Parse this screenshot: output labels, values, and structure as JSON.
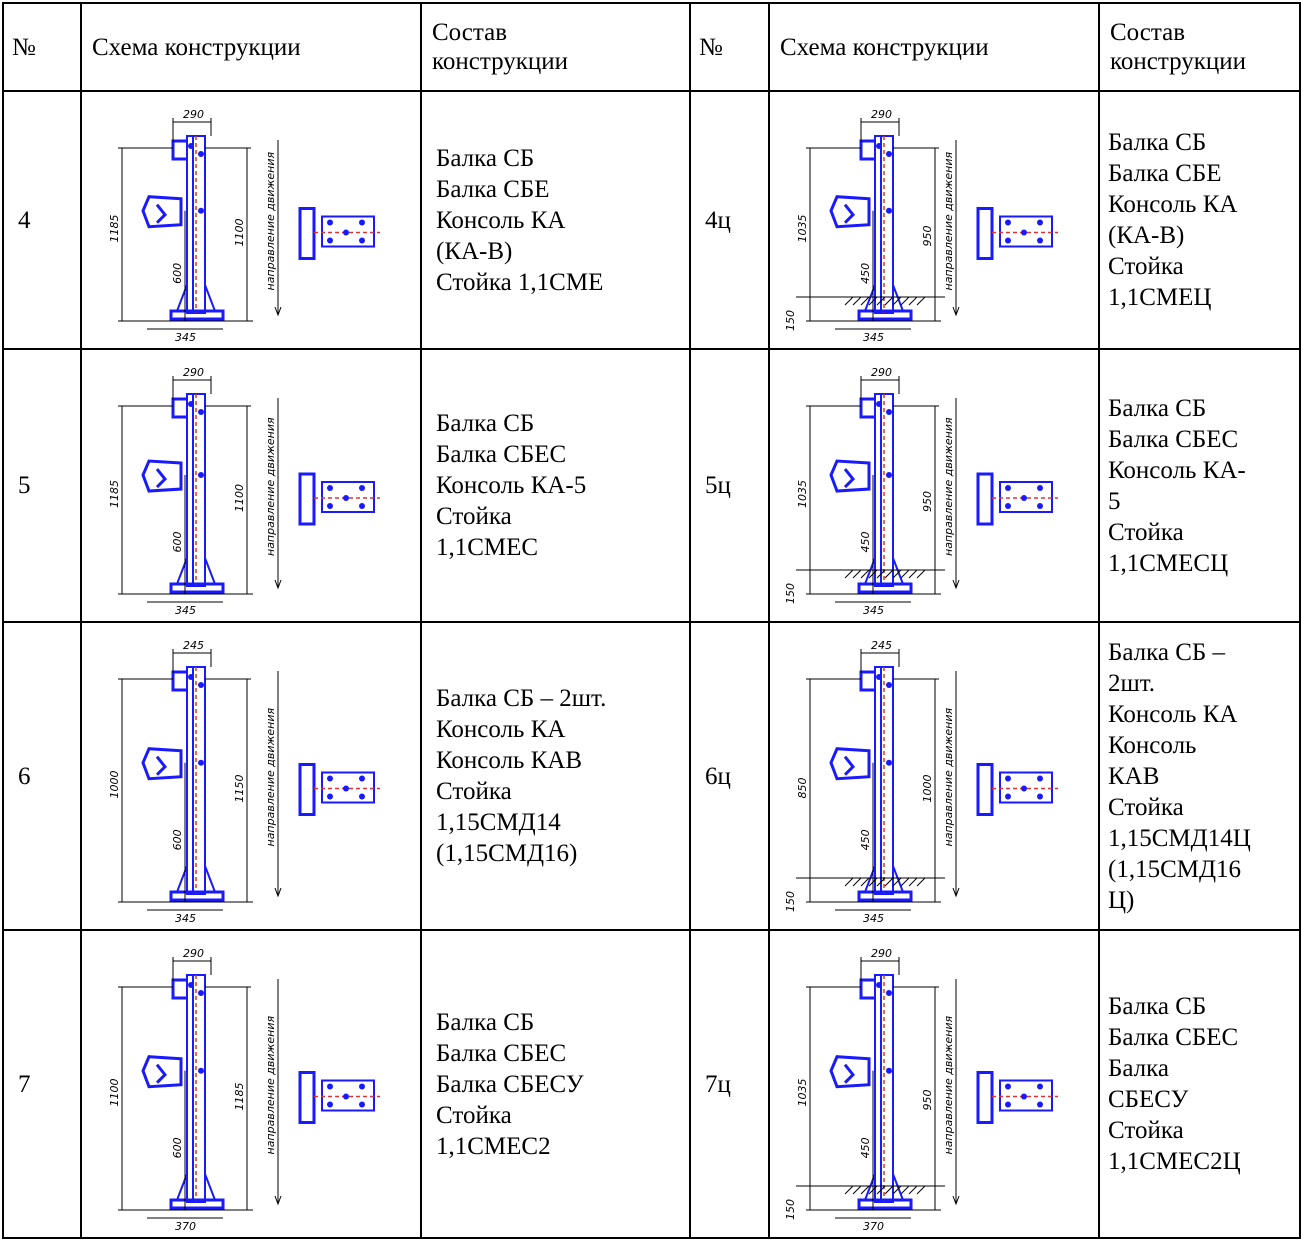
{
  "header": {
    "num": "№",
    "scheme": "Схема конструкции",
    "composition": "Состав\nконструкции"
  },
  "rows": [
    {
      "left": {
        "num": "4",
        "composition": "Балка СБ\nБалка СБЕ\nКонсоль КА\n(КА-В)\nСтойка 1,1СМЕ",
        "dims": {
          "top": "290",
          "height": "1185",
          "a": "600",
          "b": "1100",
          "base": "345"
        }
      },
      "right": {
        "num": "4ц",
        "composition": "Балка СБ\nБалка СБЕ\nКонсоль КА\n(КА-В)\nСтойка\n1,1СМЕЦ",
        "dims": {
          "top": "290",
          "height": "1035",
          "a": "450",
          "b": "950",
          "base": "345",
          "ground": "150"
        }
      }
    },
    {
      "left": {
        "num": "5",
        "composition": "Балка СБ\nБалка СБЕС\nКонсоль КА-5\nСтойка\n1,1СМЕС",
        "dims": {
          "top": "290",
          "height": "1185",
          "a": "600",
          "b": "1100",
          "base": "345"
        }
      },
      "right": {
        "num": "5ц",
        "composition": "Балка СБ\nБалка СБЕС\nКонсоль КА-\n5\nСтойка\n1,1СМЕСЦ",
        "dims": {
          "top": "290",
          "height": "1035",
          "a": "450",
          "b": "950",
          "base": "345",
          "ground": "150"
        }
      }
    },
    {
      "left": {
        "num": "6",
        "composition": "Балка СБ – 2шт.\nКонсоль КА\nКонсоль КАВ\nСтойка\n1,15СМД14\n(1,15СМД16)",
        "dims": {
          "top": "245",
          "height": "1000",
          "a": "600",
          "b": "1150",
          "base": "345"
        }
      },
      "right": {
        "num": "6ц",
        "composition": "Балка СБ –\n2шт.\nКонсоль КА\nКонсоль\nКАВ\nСтойка\n1,15СМД14Ц\n(1,15СМД16\nЦ)",
        "dims": {
          "top": "245",
          "height": "850",
          "a": "450",
          "b": "1000",
          "base": "345",
          "ground": "150"
        }
      }
    },
    {
      "left": {
        "num": "7",
        "composition": "Балка СБ\nБалка СБЕС\nБалка СБЕСУ\nСтойка\n1,1СМЕС2",
        "dims": {
          "top": "290",
          "height": "1100",
          "a": "600",
          "b": "1185",
          "base": "370"
        }
      },
      "right": {
        "num": "7ц",
        "composition": "Балка СБ\nБалка СБЕС\nБалка\nСБЕСУ\nСтойка\n1,1СМЕС2Ц",
        "dims": {
          "top": "290",
          "height": "1035",
          "a": "450",
          "b": "950",
          "base": "370",
          "ground": "150"
        }
      }
    }
  ],
  "direction_label": "направление движения",
  "colors": {
    "drawing": "#1a1aff",
    "accent": "#dd3333"
  }
}
